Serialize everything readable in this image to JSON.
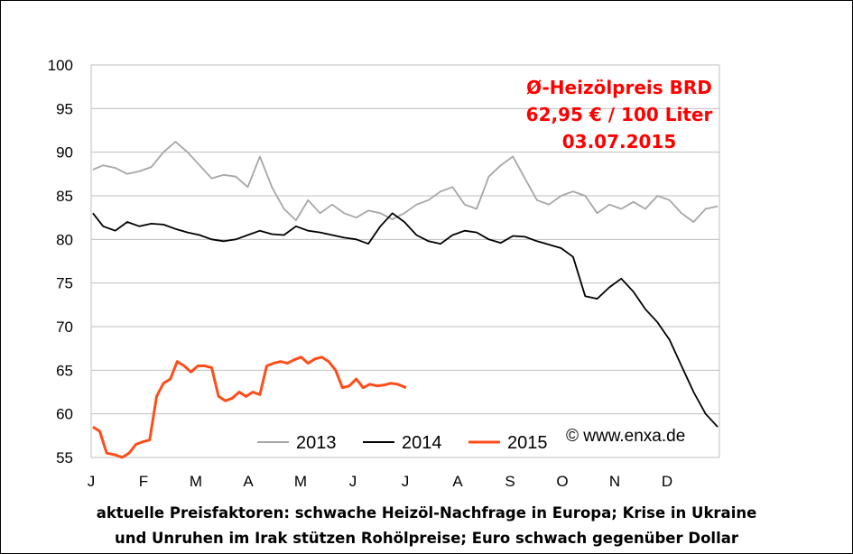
{
  "chart_data": {
    "type": "line",
    "ylim": [
      55,
      100
    ],
    "y_ticks": [
      55,
      60,
      65,
      70,
      75,
      80,
      85,
      90,
      95,
      100
    ],
    "x_ticks": [
      "J",
      "F",
      "M",
      "A",
      "M",
      "J",
      "J",
      "A",
      "S",
      "O",
      "N",
      "D"
    ],
    "grid": true,
    "legend_position": "bottom-right",
    "series": [
      {
        "name": "2013",
        "color": "#a6a6a6",
        "x": [
          1,
          7,
          14,
          21,
          28,
          35,
          42,
          49,
          56,
          63,
          70,
          77,
          84,
          91,
          98,
          105,
          112,
          119,
          126,
          133,
          140,
          147,
          154,
          161,
          168,
          175,
          182,
          189,
          196,
          203,
          210,
          217,
          224,
          231,
          238,
          245,
          252,
          259,
          266,
          273,
          280,
          287,
          294,
          301,
          308,
          315,
          322,
          329,
          336,
          343,
          350,
          357,
          364
        ],
        "values": [
          88.0,
          88.5,
          88.2,
          87.5,
          87.8,
          88.3,
          90.0,
          91.2,
          90.0,
          88.5,
          87.0,
          87.4,
          87.2,
          86.0,
          89.5,
          86.0,
          83.5,
          82.2,
          84.5,
          83.0,
          84.0,
          83.0,
          82.5,
          83.3,
          83.0,
          82.3,
          83.0,
          84.0,
          84.5,
          85.5,
          86.0,
          84.0,
          83.5,
          87.2,
          88.5,
          89.5,
          87.0,
          84.5,
          84.0,
          85.0,
          85.5,
          85.0,
          83.0,
          84.0,
          83.5,
          84.3,
          83.5,
          85.0,
          84.5,
          83.0,
          82.0,
          83.5,
          83.8
        ]
      },
      {
        "name": "2014",
        "color": "#000000",
        "x": [
          1,
          7,
          14,
          21,
          28,
          35,
          42,
          49,
          56,
          63,
          70,
          77,
          84,
          91,
          98,
          105,
          112,
          119,
          126,
          133,
          140,
          147,
          154,
          161,
          168,
          175,
          182,
          189,
          196,
          203,
          210,
          217,
          224,
          231,
          238,
          245,
          252,
          259,
          266,
          273,
          280,
          287,
          294,
          301,
          308,
          315,
          322,
          329,
          336,
          343,
          350,
          357,
          364
        ],
        "values": [
          83.0,
          81.5,
          81.0,
          82.0,
          81.5,
          81.8,
          81.7,
          81.2,
          80.8,
          80.5,
          80.0,
          79.8,
          80.0,
          80.5,
          81.0,
          80.6,
          80.5,
          81.5,
          81.0,
          80.8,
          80.5,
          80.2,
          80.0,
          79.5,
          81.5,
          83.0,
          82.0,
          80.5,
          79.8,
          79.5,
          80.5,
          81.0,
          80.8,
          80.0,
          79.6,
          80.4,
          80.3,
          79.8,
          79.4,
          79.0,
          78.0,
          73.5,
          73.2,
          74.5,
          75.5,
          74.0,
          72.0,
          70.5,
          68.5,
          65.5,
          62.5,
          60.0,
          58.5
        ]
      },
      {
        "name": "2015",
        "color": "#ff4d1a",
        "x": [
          1,
          5,
          9,
          14,
          18,
          22,
          26,
          30,
          34,
          38,
          42,
          46,
          50,
          54,
          58,
          62,
          66,
          70,
          74,
          78,
          82,
          86,
          90,
          94,
          98,
          102,
          106,
          110,
          114,
          118,
          122,
          126,
          130,
          134,
          138,
          142,
          146,
          150,
          154,
          158,
          162,
          166,
          170,
          174,
          178,
          183
        ],
        "values": [
          58.5,
          58.0,
          55.5,
          55.3,
          55.0,
          55.5,
          56.5,
          56.8,
          57.0,
          62.0,
          63.5,
          64.0,
          66.0,
          65.5,
          64.8,
          65.5,
          65.5,
          65.3,
          62.0,
          61.5,
          61.8,
          62.5,
          62.0,
          62.5,
          62.2,
          65.5,
          65.8,
          66.0,
          65.8,
          66.2,
          66.5,
          65.8,
          66.3,
          66.5,
          66.0,
          65.0,
          63.0,
          63.2,
          64.0,
          63.0,
          63.4,
          63.2,
          63.3,
          63.5,
          63.4,
          63.0
        ]
      }
    ],
    "annotations": {
      "info_lines": [
        "Ø-Heizölpreis BRD",
        "62,95 € / 100 Liter",
        "03.07.2015"
      ],
      "copyright": "© www.enxa.de"
    }
  },
  "caption": {
    "line1": "aktuelle Preisfaktoren: schwache Heizöl-Nachfrage in Europa;  Krise in Ukraine",
    "line2": "und Unruhen im Irak stützen Rohölpreise; Euro schwach gegenüber Dollar"
  }
}
